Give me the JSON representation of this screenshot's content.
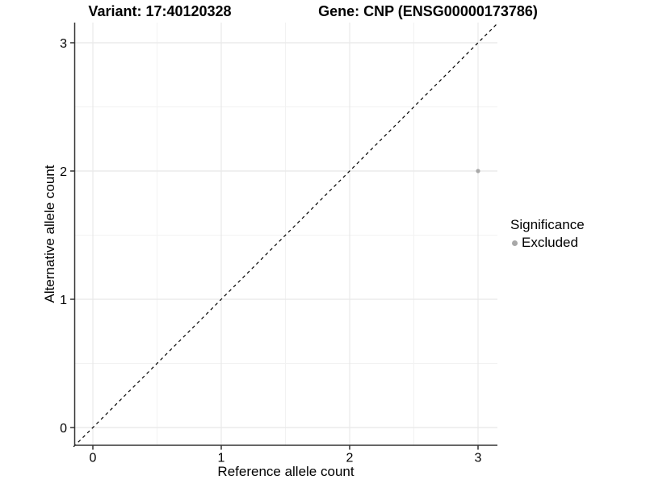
{
  "titles": {
    "variant": "Variant: 17:40120328",
    "gene": "Gene: CNP (ENSG00000173786)"
  },
  "chart_data": {
    "type": "scatter",
    "xlabel": "Reference allele count",
    "ylabel": "Alternative allele count",
    "xlim": [
      -0.15,
      3.15
    ],
    "ylim": [
      -0.15,
      3.15
    ],
    "xticks": [
      0,
      1,
      2,
      3
    ],
    "yticks": [
      0,
      1,
      2,
      3
    ],
    "minor_grid": [
      0.5,
      1.5,
      2.5
    ],
    "grid": "on",
    "series": [
      {
        "name": "Excluded",
        "color": "#a8a8a8",
        "points": [
          {
            "x": 3,
            "y": 2
          }
        ]
      }
    ],
    "abline": {
      "slope": 1,
      "intercept": 0,
      "style": "dashed",
      "color": "#000000"
    },
    "legend": {
      "title": "Significance",
      "position": "right",
      "items": [
        {
          "label": "Excluded",
          "color": "#a8a8a8"
        }
      ]
    }
  },
  "colors": {
    "axis_line": "#333333",
    "tick_label": "#000000",
    "grid_major": "#e8e8e8",
    "grid_minor": "#f2f2f2",
    "background": "#ffffff"
  }
}
